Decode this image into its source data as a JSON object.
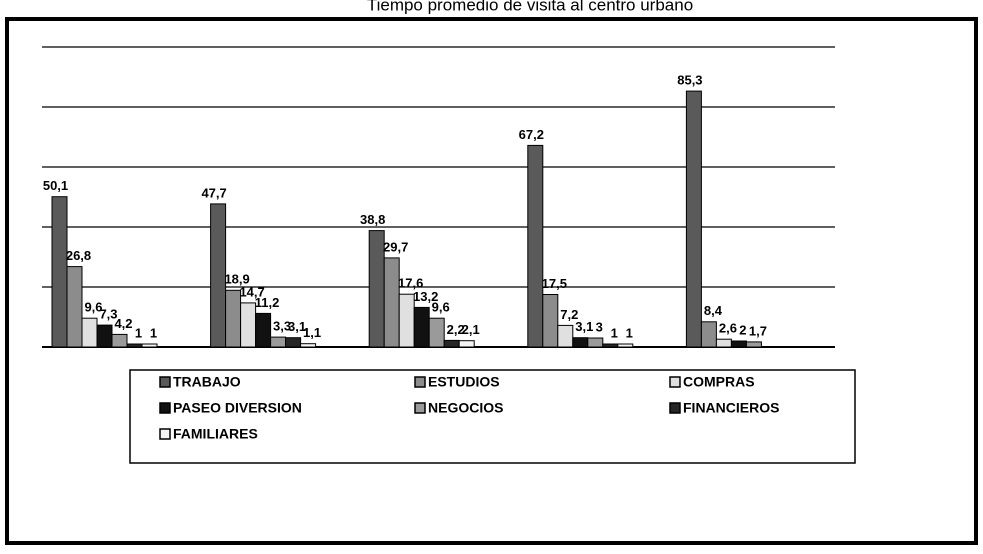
{
  "chart_data": {
    "type": "bar",
    "title": "Tiempo promedio de visita al centro urbano",
    "categories": [
      null,
      null,
      null,
      null,
      null
    ],
    "ylim": [
      0,
      100
    ],
    "yticks": [
      0,
      20,
      40,
      60,
      80,
      100
    ],
    "grid": true,
    "series": [
      {
        "name": "TRABAJO",
        "color": "#5a5a5a",
        "values": [
          50.1,
          47.7,
          38.8,
          67.2,
          85.3
        ],
        "value_labels": [
          "50,1",
          "47,7",
          "38,8",
          "67,2",
          "85,3"
        ]
      },
      {
        "name": "ESTUDIOS",
        "color": "#8c8c8c",
        "values": [
          26.8,
          18.9,
          29.7,
          17.5,
          8.4
        ],
        "value_labels": [
          "26,8",
          "18,9",
          "29,7",
          "17,5",
          "8,4"
        ]
      },
      {
        "name": "COMPRAS",
        "color": "#e0e0e0",
        "values": [
          9.6,
          14.7,
          17.6,
          7.2,
          2.6
        ],
        "value_labels": [
          "9,6",
          "14,7",
          "17,6",
          "7,2",
          "2,6"
        ]
      },
      {
        "name": "PASEO DIVERSION",
        "color": "#111111",
        "values": [
          7.3,
          11.2,
          13.2,
          3.1,
          2
        ],
        "value_labels": [
          "7,3",
          "11,2",
          "13,2",
          "3,1",
          "2"
        ]
      },
      {
        "name": "NEGOCIOS",
        "color": "#9a9a9a",
        "values": [
          4.2,
          3.3,
          9.6,
          3,
          1.7
        ],
        "value_labels": [
          "4,2",
          "3,3",
          "9,6",
          "3",
          "1,7"
        ]
      },
      {
        "name": "FINANCIEROS",
        "color": "#262626",
        "values": [
          1,
          3.1,
          2.2,
          1,
          null
        ],
        "value_labels": [
          "1",
          "3,1",
          "2,2",
          "1",
          null
        ]
      },
      {
        "name": "FAMILIARES",
        "color": "#f4f4f4",
        "values": [
          1,
          1.1,
          2.1,
          1,
          null
        ],
        "value_labels": [
          "1",
          "1,1",
          "2,1",
          "1",
          null
        ]
      }
    ]
  }
}
